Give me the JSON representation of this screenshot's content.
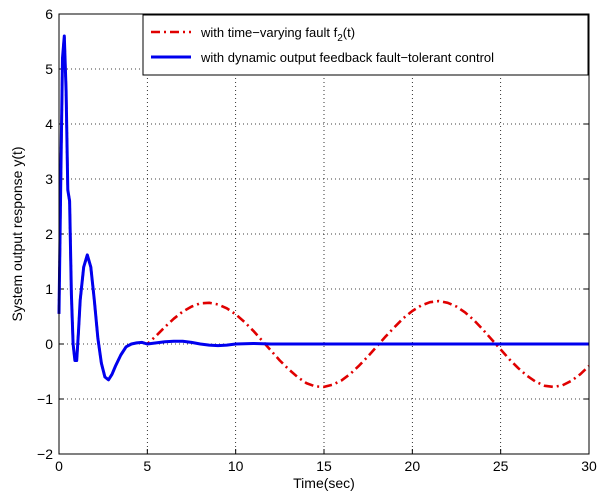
{
  "chart_data": {
    "type": "line",
    "title": "",
    "xlabel": "Time(sec)",
    "ylabel": "System output response y(t)",
    "xlim": [
      0,
      30
    ],
    "ylim": [
      -2,
      6
    ],
    "xticks": [
      0,
      5,
      10,
      15,
      20,
      25,
      30
    ],
    "yticks": [
      -2,
      -1,
      0,
      1,
      2,
      3,
      4,
      5,
      6
    ],
    "grid": true,
    "legend_position": "top-right",
    "series": [
      {
        "name_prefix": "with time−varying fault f",
        "name_sub": "2",
        "name_suffix": "(t)",
        "color": "#e00000",
        "style": "dash-dot",
        "x": [
          0,
          0.1,
          0.2,
          0.3,
          0.4,
          0.5,
          0.6,
          0.7,
          0.8,
          0.9,
          1.0,
          1.1,
          1.2,
          1.4,
          1.6,
          1.8,
          2.0,
          2.2,
          2.4,
          2.6,
          2.8,
          3.0,
          3.2,
          3.5,
          3.8,
          4.1,
          4.4,
          4.7,
          5.0,
          5.5,
          6.0,
          6.5,
          7.0,
          7.5,
          8.0,
          8.5,
          9.0,
          9.5,
          10.0,
          10.5,
          11.0,
          11.5,
          12.0,
          12.5,
          13.0,
          13.5,
          14.0,
          14.5,
          15.0,
          15.5,
          16.0,
          16.5,
          17.0,
          17.5,
          18.0,
          18.5,
          19.0,
          19.5,
          20.0,
          20.5,
          21.0,
          21.5,
          22.0,
          22.5,
          23.0,
          23.5,
          24.0,
          24.5,
          25.0,
          25.5,
          26.0,
          26.5,
          27.0,
          27.5,
          28.0,
          28.5,
          29.0,
          29.5,
          30.0
        ],
        "y": [
          0.55,
          3.0,
          5.2,
          5.6,
          4.6,
          2.8,
          2.6,
          0.9,
          0.0,
          -0.3,
          -0.3,
          0.2,
          0.8,
          1.4,
          1.62,
          1.4,
          0.8,
          0.1,
          -0.35,
          -0.6,
          -0.65,
          -0.55,
          -0.4,
          -0.2,
          -0.05,
          0.0,
          0.02,
          0.03,
          0.0,
          0.15,
          0.31,
          0.46,
          0.59,
          0.68,
          0.74,
          0.75,
          0.72,
          0.65,
          0.54,
          0.4,
          0.24,
          0.06,
          -0.12,
          -0.3,
          -0.46,
          -0.6,
          -0.71,
          -0.77,
          -0.78,
          -0.74,
          -0.66,
          -0.54,
          -0.39,
          -0.22,
          -0.04,
          0.14,
          0.31,
          0.47,
          0.6,
          0.7,
          0.76,
          0.78,
          0.75,
          0.68,
          0.57,
          0.43,
          0.26,
          0.08,
          -0.1,
          -0.28,
          -0.44,
          -0.58,
          -0.69,
          -0.76,
          -0.78,
          -0.75,
          -0.67,
          -0.55,
          -0.4
        ],
        "label_color": "#e00000"
      },
      {
        "name": "with dynamic output feedback fault−tolerant control",
        "color": "#0000ee",
        "style": "solid",
        "x": [
          0,
          0.1,
          0.2,
          0.3,
          0.4,
          0.5,
          0.6,
          0.7,
          0.8,
          0.9,
          1.0,
          1.1,
          1.2,
          1.4,
          1.6,
          1.8,
          2.0,
          2.2,
          2.4,
          2.6,
          2.8,
          3.0,
          3.2,
          3.5,
          3.8,
          4.1,
          4.4,
          4.7,
          5.0,
          5.5,
          6.0,
          6.5,
          7.0,
          7.5,
          8.0,
          8.5,
          9.0,
          9.5,
          10.0,
          11.0,
          12.0,
          13.0,
          14.0,
          16.0,
          18.0,
          20.0,
          22.0,
          24.0,
          26.0,
          28.0,
          30.0
        ],
        "y": [
          0.55,
          3.0,
          5.2,
          5.6,
          4.6,
          2.8,
          2.6,
          0.9,
          0.0,
          -0.3,
          -0.3,
          0.2,
          0.8,
          1.4,
          1.62,
          1.4,
          0.8,
          0.1,
          -0.35,
          -0.6,
          -0.65,
          -0.55,
          -0.4,
          -0.2,
          -0.05,
          0.0,
          0.02,
          0.03,
          0.0,
          0.02,
          0.04,
          0.05,
          0.05,
          0.03,
          0.0,
          -0.02,
          -0.03,
          -0.02,
          0.0,
          0.01,
          0.0,
          0.0,
          0.0,
          0.0,
          0.0,
          0.0,
          0.0,
          0.0,
          0.0,
          0.0,
          0.0
        ]
      }
    ]
  }
}
